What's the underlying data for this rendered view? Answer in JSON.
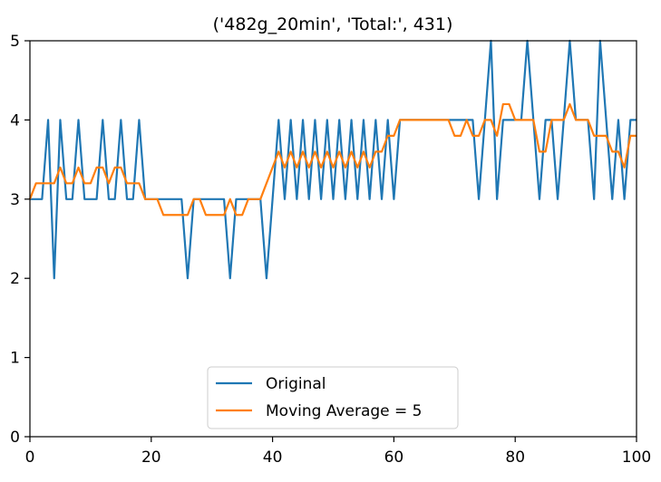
{
  "chart_data": {
    "type": "line",
    "title": "('482g_20min', 'Total:', 431)",
    "xlabel": "",
    "ylabel": "",
    "xlim": [
      0,
      100
    ],
    "ylim": [
      0,
      5
    ],
    "xticks": [
      0,
      20,
      40,
      60,
      80,
      100
    ],
    "yticks": [
      0,
      1,
      2,
      3,
      4,
      5
    ],
    "grid": false,
    "legend_position": "lower-center",
    "series": [
      {
        "name": "Original",
        "color": "#1f77b4",
        "x": [
          0,
          1,
          2,
          3,
          4,
          5,
          6,
          7,
          8,
          9,
          10,
          11,
          12,
          13,
          14,
          15,
          16,
          17,
          18,
          19,
          20,
          21,
          22,
          23,
          24,
          25,
          26,
          27,
          28,
          29,
          30,
          31,
          32,
          33,
          34,
          35,
          36,
          37,
          38,
          39,
          40,
          41,
          42,
          43,
          44,
          45,
          46,
          47,
          48,
          49,
          50,
          51,
          52,
          53,
          54,
          55,
          56,
          57,
          58,
          59,
          60,
          61,
          62,
          63,
          64,
          65,
          66,
          67,
          68,
          69,
          70,
          71,
          72,
          73,
          74,
          75,
          76,
          77,
          78,
          79,
          80,
          81,
          82,
          83,
          84,
          85,
          86,
          87,
          88,
          89,
          90,
          91,
          92,
          93,
          94,
          95,
          96,
          97,
          98,
          99,
          100
        ],
        "y": [
          3,
          3,
          3,
          4,
          2,
          4,
          3,
          3,
          4,
          3,
          3,
          3,
          4,
          3,
          3,
          4,
          3,
          3,
          4,
          3,
          3,
          3,
          3,
          3,
          3,
          3,
          2,
          3,
          3,
          3,
          3,
          3,
          3,
          2,
          3,
          3,
          3,
          3,
          3,
          2,
          3,
          4,
          3,
          4,
          3,
          4,
          3,
          4,
          3,
          4,
          3,
          4,
          3,
          4,
          3,
          4,
          3,
          4,
          3,
          4,
          3,
          4,
          4,
          4,
          4,
          4,
          4,
          4,
          4,
          4,
          4,
          4,
          4,
          4,
          3,
          4,
          5,
          3,
          4,
          4,
          4,
          4,
          5,
          4,
          3,
          4,
          4,
          3,
          4,
          5,
          4,
          4,
          4,
          3,
          5,
          4,
          3,
          4,
          3,
          4,
          4
        ]
      },
      {
        "name": "Moving Average = 5",
        "color": "#ff7f0e",
        "x": [
          0,
          1,
          2,
          3,
          4,
          5,
          6,
          7,
          8,
          9,
          10,
          11,
          12,
          13,
          14,
          15,
          16,
          17,
          18,
          19,
          20,
          21,
          22,
          23,
          24,
          25,
          26,
          27,
          28,
          29,
          30,
          31,
          32,
          33,
          34,
          35,
          36,
          37,
          38,
          39,
          40,
          41,
          42,
          43,
          44,
          45,
          46,
          47,
          48,
          49,
          50,
          51,
          52,
          53,
          54,
          55,
          56,
          57,
          58,
          59,
          60,
          61,
          62,
          63,
          64,
          65,
          66,
          67,
          68,
          69,
          70,
          71,
          72,
          73,
          74,
          75,
          76,
          77,
          78,
          79,
          80,
          81,
          82,
          83,
          84,
          85,
          86,
          87,
          88,
          89,
          90,
          91,
          92,
          93,
          94,
          95,
          96,
          97,
          98,
          99,
          100
        ],
        "y": [
          3.0,
          3.2,
          3.2,
          3.2,
          3.2,
          3.4,
          3.2,
          3.2,
          3.4,
          3.2,
          3.2,
          3.4,
          3.4,
          3.2,
          3.4,
          3.4,
          3.2,
          3.2,
          3.2,
          3.0,
          3.0,
          3.0,
          2.8,
          2.8,
          2.8,
          2.8,
          2.8,
          3.0,
          3.0,
          2.8,
          2.8,
          2.8,
          2.8,
          3.0,
          2.8,
          2.8,
          3.0,
          3.0,
          3.0,
          3.2,
          3.4,
          3.6,
          3.4,
          3.6,
          3.4,
          3.6,
          3.4,
          3.6,
          3.4,
          3.6,
          3.4,
          3.6,
          3.4,
          3.6,
          3.4,
          3.6,
          3.4,
          3.6,
          3.6,
          3.8,
          3.8,
          4.0,
          4.0,
          4.0,
          4.0,
          4.0,
          4.0,
          4.0,
          4.0,
          4.0,
          3.8,
          3.8,
          4.0,
          3.8,
          3.8,
          4.0,
          4.0,
          3.8,
          4.2,
          4.2,
          4.0,
          4.0,
          4.0,
          4.0,
          3.6,
          3.6,
          4.0,
          4.0,
          4.0,
          4.2,
          4.0,
          4.0,
          4.0,
          3.8,
          3.8,
          3.8,
          3.6,
          3.6,
          3.4,
          3.8,
          3.8
        ]
      }
    ]
  }
}
